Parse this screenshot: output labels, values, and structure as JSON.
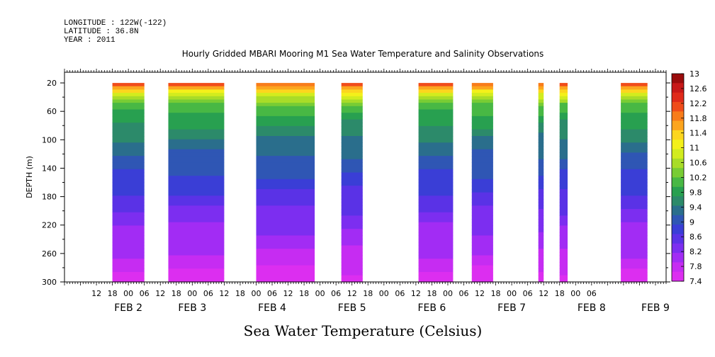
{
  "header": {
    "longitude": "LONGITUDE : 122W(-122)",
    "latitude": "LATITUDE : 36.8N",
    "year": "YEAR : 2011",
    "title": "Hourly Gridded MBARI Mooring M1 Sea Water Temperature and Salinity Observations"
  },
  "chart_data": {
    "type": "heatmap",
    "title": "Hourly Gridded MBARI Mooring M1 Sea Water Temperature and Salinity Observations",
    "xlabel": "Sea Water Temperature (Celsius)",
    "ylabel": "DEPTH (m)",
    "y_axis": {
      "ticks": [
        20,
        60,
        100,
        140,
        180,
        220,
        260,
        300
      ],
      "ylim": [
        300,
        5
      ],
      "inverted": true
    },
    "x_axis": {
      "hour_ticks": [
        "12",
        "18",
        "00",
        "06",
        "12",
        "18",
        "00",
        "06",
        "12",
        "18",
        "00",
        "06",
        "12",
        "18",
        "00",
        "06",
        "12",
        "18",
        "00",
        "06",
        "12",
        "18",
        "00",
        "06",
        "12",
        "18",
        "00",
        "06",
        "12",
        "18",
        "00",
        "06"
      ],
      "day_labels": [
        "FEB  2",
        "FEB  3",
        "FEB  4",
        "FEB  5",
        "FEB  6",
        "FEB  7",
        "FEB  8",
        "FEB  9"
      ]
    },
    "colorbar": {
      "levels": [
        "13",
        "12.6",
        "12.2",
        "11.8",
        "11.4",
        "11",
        "10.6",
        "10.2",
        "9.8",
        "9.4",
        "9",
        "8.6",
        "8.2",
        "7.8",
        "7.4"
      ],
      "colors": [
        "#9a0c0c",
        "#c81818",
        "#e02a1a",
        "#f04c1a",
        "#f87c1a",
        "#fca51e",
        "#fcd61e",
        "#f4f01a",
        "#d2ec1e",
        "#a8dc28",
        "#78cc34",
        "#48b844",
        "#28a050",
        "#2c8a6a",
        "#2a6e8c",
        "#2f56b4",
        "#3a3ed6",
        "#5a32e6",
        "#7c2ef0",
        "#a22cf4",
        "#c62cf2",
        "#dc2ef0"
      ]
    },
    "profiles": [
      {
        "depth": 20,
        "temp": 12.2
      },
      {
        "depth": 35,
        "temp": 11.0
      },
      {
        "depth": 50,
        "temp": 10.2
      },
      {
        "depth": 70,
        "temp": 9.8
      },
      {
        "depth": 100,
        "temp": 9.4
      },
      {
        "depth": 140,
        "temp": 9.0
      },
      {
        "depth": 180,
        "temp": 8.6
      },
      {
        "depth": 220,
        "temp": 8.2
      },
      {
        "depth": 260,
        "temp": 7.9
      },
      {
        "depth": 300,
        "temp": 7.5
      }
    ],
    "data_blocks": [
      {
        "start_hour": 42,
        "end_hour": 54
      },
      {
        "start_hour": 63,
        "end_hour": 84
      },
      {
        "start_hour": 96,
        "end_hour": 118
      },
      {
        "start_hour": 128,
        "end_hour": 136
      },
      {
        "start_hour": 157,
        "end_hour": 170
      },
      {
        "start_hour": 177,
        "end_hour": 185
      },
      {
        "start_hour": 202,
        "end_hour": 204
      },
      {
        "start_hour": 210,
        "end_hour": 213
      },
      {
        "start_hour": 233,
        "end_hour": 243
      }
    ]
  }
}
